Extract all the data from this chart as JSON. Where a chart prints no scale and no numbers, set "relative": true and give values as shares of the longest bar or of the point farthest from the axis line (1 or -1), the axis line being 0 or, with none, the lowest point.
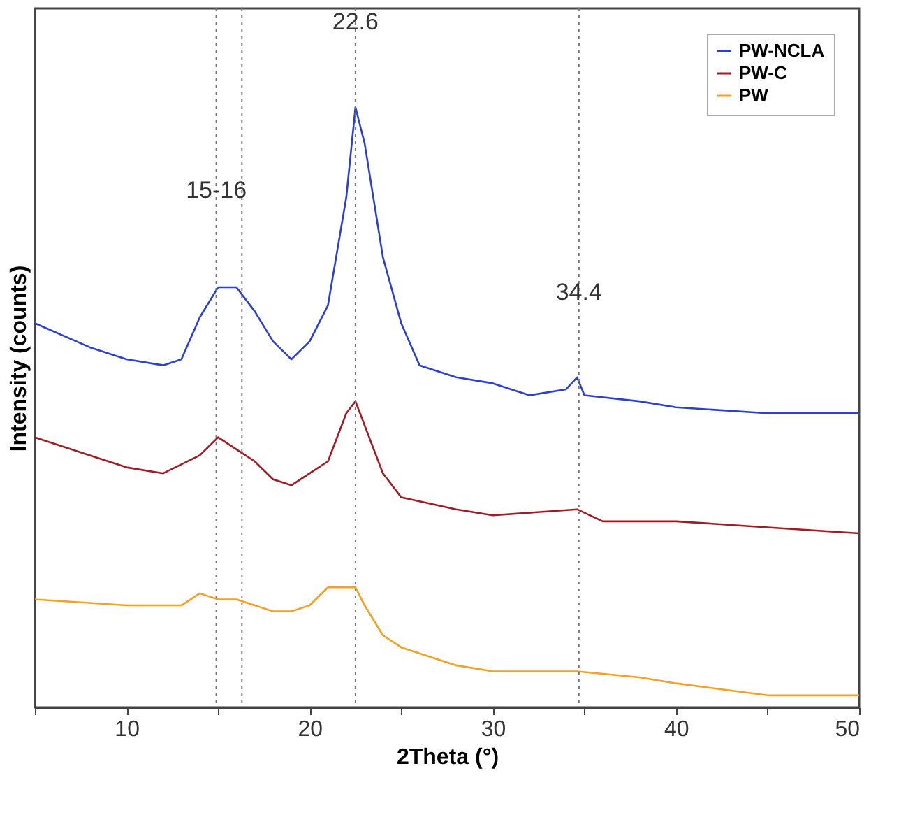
{
  "chart_data": {
    "type": "line",
    "relative": true,
    "xlabel": "2Theta (°)",
    "ylabel": "Intensity (counts)",
    "xlim": [
      5,
      50
    ],
    "xticks": [
      {
        "value": 5,
        "label": null
      },
      10,
      {
        "value": 15,
        "label": null
      },
      20,
      {
        "value": 25,
        "label": null
      },
      30,
      {
        "value": 35,
        "label": null
      },
      40,
      {
        "value": 45,
        "label": null
      },
      50
    ],
    "tick_labels": "x",
    "legend": "top right",
    "grid": false,
    "marker": "none",
    "line_style": "solid",
    "series": [
      {
        "name": "PW-NCLA",
        "color": "#2b3fd0",
        "x": [
          5,
          8,
          10,
          12,
          13,
          14,
          15,
          16,
          17,
          18,
          19,
          20,
          21,
          22,
          22.5,
          23,
          24,
          25,
          26,
          28,
          30,
          32,
          34,
          34.6,
          35,
          38,
          40,
          45,
          50
        ],
        "values": [
          0.64,
          0.6,
          0.58,
          0.57,
          0.58,
          0.65,
          0.7,
          0.7,
          0.66,
          0.61,
          0.58,
          0.61,
          0.67,
          0.85,
          1.0,
          0.94,
          0.75,
          0.64,
          0.57,
          0.55,
          0.54,
          0.52,
          0.53,
          0.55,
          0.52,
          0.51,
          0.5,
          0.49,
          0.49
        ]
      },
      {
        "name": "PW-C",
        "color": "#a01c24",
        "x": [
          5,
          8,
          10,
          12,
          14,
          15,
          16,
          17,
          18,
          19,
          20,
          21,
          22,
          22.5,
          23,
          24,
          25,
          28,
          30,
          34.6,
          36,
          40,
          45,
          50
        ],
        "values": [
          0.45,
          0.42,
          0.4,
          0.39,
          0.42,
          0.45,
          0.43,
          0.41,
          0.38,
          0.37,
          0.39,
          0.41,
          0.49,
          0.51,
          0.47,
          0.39,
          0.35,
          0.33,
          0.32,
          0.33,
          0.31,
          0.31,
          0.3,
          0.29
        ]
      },
      {
        "name": "PW",
        "color": "#f5a020",
        "x": [
          5,
          10,
          13,
          14,
          15,
          16,
          17,
          18,
          19,
          20,
          21,
          22,
          22.5,
          23,
          24,
          25,
          28,
          30,
          34.6,
          38,
          40,
          45,
          50
        ],
        "values": [
          0.18,
          0.17,
          0.17,
          0.19,
          0.18,
          0.18,
          0.17,
          0.16,
          0.16,
          0.17,
          0.2,
          0.2,
          0.2,
          0.17,
          0.12,
          0.1,
          0.07,
          0.06,
          0.06,
          0.05,
          0.04,
          0.02,
          0.02
        ]
      }
    ],
    "ref_lines": [
      {
        "axis": "x",
        "value": 14.9,
        "color": "#777777",
        "line_style": "dotted"
      },
      {
        "axis": "x",
        "value": 16.3,
        "color": "#777777",
        "line_style": "dotted"
      },
      {
        "axis": "x",
        "value": 22.5,
        "color": "#777777",
        "line_style": "dotted"
      },
      {
        "axis": "x",
        "value": 34.7,
        "color": "#777777",
        "line_style": "dotted"
      }
    ],
    "annotations": [
      {
        "text": "15-16",
        "x": 14.9,
        "y": 0.84
      },
      {
        "text": "22.6",
        "x": 22.5,
        "y": 1.12
      },
      {
        "text": "34.4",
        "x": 34.7,
        "y": 0.67
      }
    ]
  }
}
